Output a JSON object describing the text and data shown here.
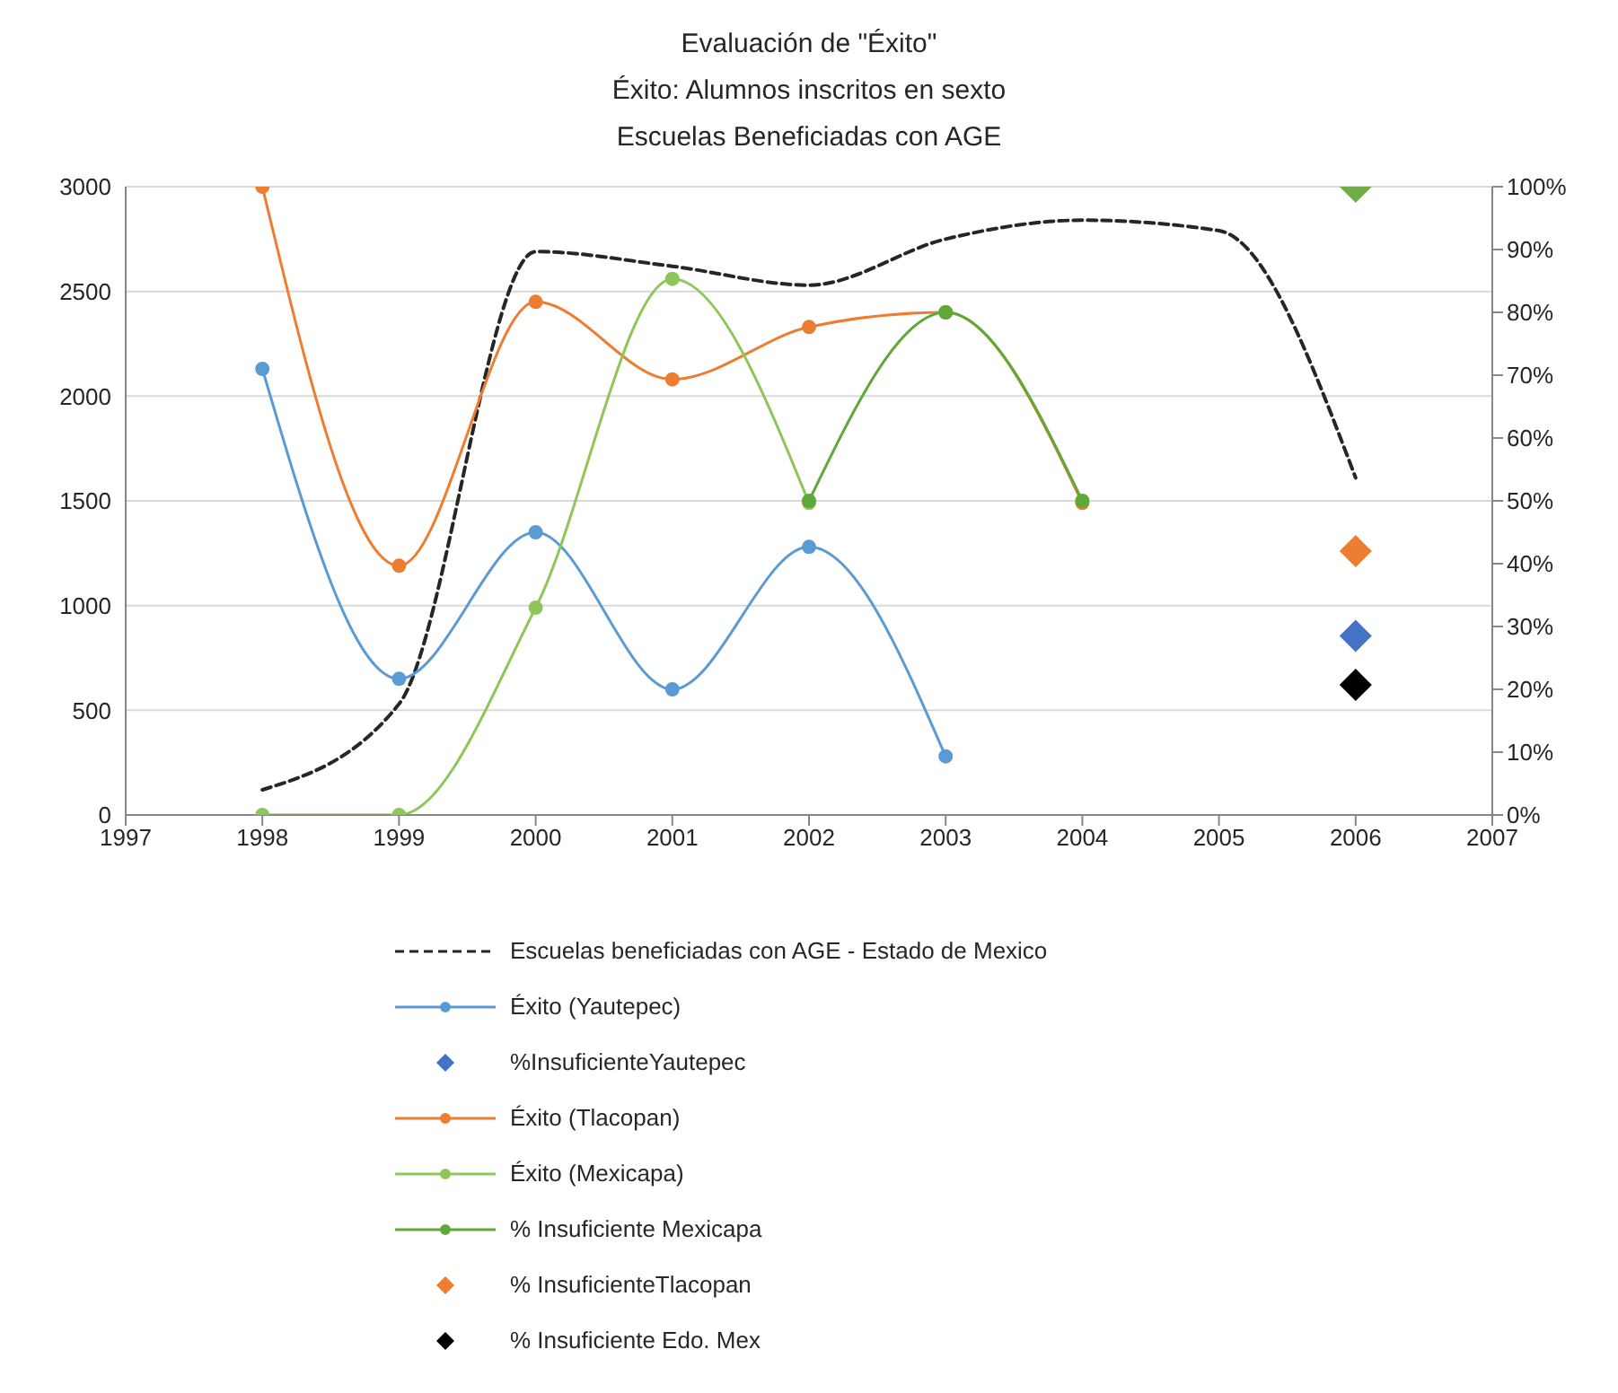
{
  "chart_data": {
    "type": "line",
    "title": "Evaluación de \"Éxito\"",
    "subtitle": "Éxito: Alumnos inscritos en sexto\nEscuelas Beneficiadas con AGE",
    "xlim": [
      1997,
      2007
    ],
    "xticks": [
      1997,
      1998,
      1999,
      2000,
      2001,
      2002,
      2003,
      2004,
      2005,
      2006,
      2007
    ],
    "ylim": [
      0,
      3000
    ],
    "yticks": [
      0,
      500,
      1000,
      1500,
      2000,
      2500,
      3000
    ],
    "y2lim": [
      0,
      100
    ],
    "y2ticks": [
      {
        "value": 0,
        "label": "0%"
      },
      {
        "value": 10,
        "label": "10%"
      },
      {
        "value": 20,
        "label": "20%"
      },
      {
        "value": 30,
        "label": "30%"
      },
      {
        "value": 40,
        "label": "40%"
      },
      {
        "value": 50,
        "label": "50%"
      },
      {
        "value": 60,
        "label": "60%"
      },
      {
        "value": 70,
        "label": "70%"
      },
      {
        "value": 80,
        "label": "80%"
      },
      {
        "value": 90,
        "label": "90%"
      },
      {
        "value": 100,
        "label": "100%"
      }
    ],
    "grid": "y",
    "legend": "bottom",
    "series": [
      {
        "name": "Escuelas beneficiadas con AGE - Estado de Mexico",
        "color": "#262626",
        "line_style": "dashed",
        "marker": "none",
        "x": [
          1998,
          1999,
          2000,
          2001,
          2002,
          2003,
          2004,
          2005,
          2006
        ],
        "values": [
          120,
          530,
          2690,
          2620,
          2530,
          2750,
          2840,
          2790,
          1610
        ]
      },
      {
        "name": "Éxito (Yautepec)",
        "color": "#5b9bd5",
        "marker": "circle",
        "x": [
          1998,
          1999,
          2000,
          2001,
          2002,
          2003
        ],
        "values": [
          2130,
          650,
          1350,
          600,
          1280,
          280
        ]
      },
      {
        "name": "%InsuficienteYautepec",
        "type": "scatter",
        "color": "#4472c4",
        "marker": "diamond",
        "axis": "y2",
        "x": [
          2006
        ],
        "values": [
          28.5
        ]
      },
      {
        "name": "Éxito (Tlacopan)",
        "color": "#ed7d31",
        "marker": "circle",
        "x": [
          1998,
          1999,
          2000,
          2001,
          2002,
          2003,
          2004
        ],
        "values": [
          3000,
          1190,
          2450,
          2080,
          2330,
          2400,
          1490
        ]
      },
      {
        "name": "Éxito (Mexicapa)",
        "color": "#8fc65a",
        "marker": "circle",
        "x": [
          1998,
          1999,
          2000,
          2001,
          2002
        ],
        "values": [
          0,
          0,
          990,
          2560,
          1490
        ]
      },
      {
        "name": "% Insuficiente Mexicapa",
        "color": "#5fa83a",
        "marker": "circle",
        "axis": "y2",
        "x": [
          2002,
          2003,
          2004
        ],
        "values": [
          50,
          80,
          50
        ]
      },
      {
        "name": "% InsuficienteTlacopan",
        "type": "scatter",
        "color": "#ed7d31",
        "marker": "diamond",
        "axis": "y2",
        "x": [
          2006
        ],
        "values": [
          42
        ]
      },
      {
        "name": "% Insuficiente Edo. Mex",
        "type": "scatter",
        "color": "#000000",
        "marker": "diamond",
        "axis": "y2",
        "x": [
          2006
        ],
        "values": [
          20.7
        ]
      },
      {
        "type": "scatter",
        "color": "#70ad47",
        "marker": "diamond",
        "axis": "y2",
        "x": [
          2006
        ],
        "values": [
          100
        ]
      }
    ]
  }
}
